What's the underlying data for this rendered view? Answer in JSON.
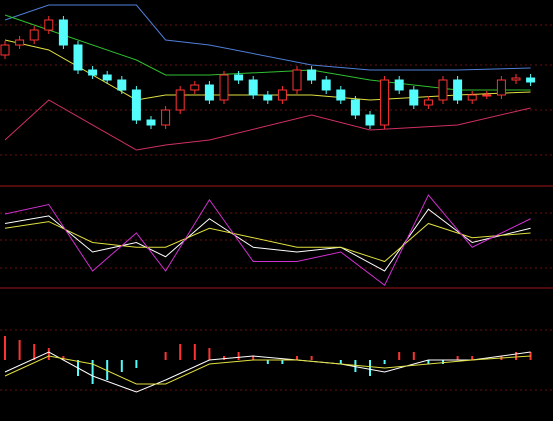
{
  "chart_data": [
    {
      "type": "candlestick",
      "ylim": [
        0,
        185
      ],
      "up_color": "#ff3232",
      "down_color": "#54fcfc",
      "open": [
        130,
        140,
        145,
        155,
        165,
        140,
        115,
        110,
        105,
        95,
        65,
        60,
        75,
        95,
        100,
        85,
        110,
        105,
        90,
        85,
        95,
        115,
        105,
        95,
        85,
        70,
        60,
        105,
        95,
        80,
        85,
        105,
        85,
        90,
        90,
        105,
        107
      ],
      "high": [
        144,
        149,
        159,
        169,
        169,
        144,
        119,
        114,
        109,
        99,
        69,
        79,
        99,
        104,
        104,
        114,
        114,
        109,
        94,
        99,
        119,
        119,
        109,
        99,
        89,
        74,
        109,
        109,
        99,
        89,
        109,
        109,
        94,
        94,
        109,
        111,
        111
      ],
      "low": [
        126,
        136,
        141,
        151,
        136,
        111,
        106,
        101,
        91,
        61,
        56,
        56,
        71,
        91,
        81,
        81,
        101,
        86,
        81,
        81,
        91,
        101,
        91,
        81,
        66,
        56,
        56,
        91,
        76,
        76,
        81,
        81,
        81,
        86,
        86,
        101,
        99
      ],
      "close": [
        140,
        145,
        155,
        165,
        140,
        115,
        110,
        105,
        95,
        65,
        60,
        75,
        95,
        100,
        85,
        110,
        105,
        90,
        85,
        95,
        115,
        105,
        95,
        85,
        70,
        60,
        105,
        95,
        80,
        85,
        105,
        85,
        90,
        90,
        105,
        107,
        103
      ],
      "lines": [
        {
          "color": "#4f7fd8",
          "x": [
            0,
            3,
            9,
            11,
            14,
            21,
            25,
            31,
            36
          ],
          "values": [
            165,
            180,
            180,
            145,
            140,
            120,
            115,
            115,
            117
          ]
        },
        {
          "color": "#d03060",
          "x": [
            0,
            3,
            9,
            11,
            14,
            21,
            25,
            31,
            36
          ],
          "values": [
            45,
            85,
            35,
            40,
            45,
            70,
            55,
            60,
            77
          ]
        },
        {
          "color": "#30c030",
          "x": [
            0,
            3,
            9,
            11,
            14,
            21,
            25,
            31,
            36
          ],
          "values": [
            170,
            155,
            125,
            110,
            110,
            115,
            105,
            95,
            95
          ]
        },
        {
          "color": "#e0e040",
          "x": [
            0,
            3,
            9,
            11,
            14,
            21,
            25,
            31,
            36
          ],
          "values": [
            145,
            135,
            85,
            90,
            90,
            90,
            85,
            90,
            93
          ]
        }
      ]
    },
    {
      "type": "line",
      "ylim": [
        0,
        100
      ],
      "x": [
        0,
        3,
        6,
        9,
        11,
        14,
        17,
        20,
        23,
        26,
        29,
        32,
        36
      ],
      "series": [
        {
          "color": "#ffffff",
          "values": [
            70,
            78,
            40,
            50,
            35,
            75,
            45,
            40,
            45,
            20,
            85,
            50,
            65
          ]
        },
        {
          "color": "#e0e040",
          "values": [
            65,
            72,
            50,
            45,
            45,
            65,
            55,
            45,
            45,
            30,
            70,
            55,
            60
          ]
        },
        {
          "color": "#d030d0",
          "values": [
            80,
            90,
            20,
            60,
            20,
            95,
            30,
            30,
            40,
            5,
            100,
            45,
            75
          ]
        }
      ]
    },
    {
      "type": "macd",
      "ylim": [
        -10,
        10
      ],
      "up_color": "#ff3232",
      "down_color": "#54fcfc",
      "values": [
        6,
        5,
        4,
        3,
        1,
        -4,
        -6,
        -5,
        -3,
        -2,
        0,
        2,
        4,
        4,
        3,
        1,
        2,
        1,
        -1,
        -1,
        1,
        1,
        0,
        -1,
        -3,
        -4,
        -1,
        2,
        2,
        -1,
        -1,
        1,
        1,
        0,
        1,
        2,
        2
      ],
      "lines": [
        {
          "color": "#ffffff",
          "x": [
            0,
            3,
            6,
            9,
            11,
            14,
            17,
            20,
            23,
            26,
            29,
            32,
            36
          ],
          "values": [
            -3,
            2,
            -4,
            -8,
            -5,
            0,
            1,
            0,
            -1,
            -3,
            0,
            0,
            2
          ]
        },
        {
          "color": "#e0e040",
          "x": [
            0,
            3,
            6,
            9,
            11,
            14,
            17,
            20,
            23,
            26,
            29,
            32,
            36
          ],
          "values": [
            -4,
            1,
            -1,
            -6,
            -6,
            -1,
            0,
            0,
            -1,
            -2,
            -1,
            0,
            1
          ]
        }
      ]
    }
  ]
}
